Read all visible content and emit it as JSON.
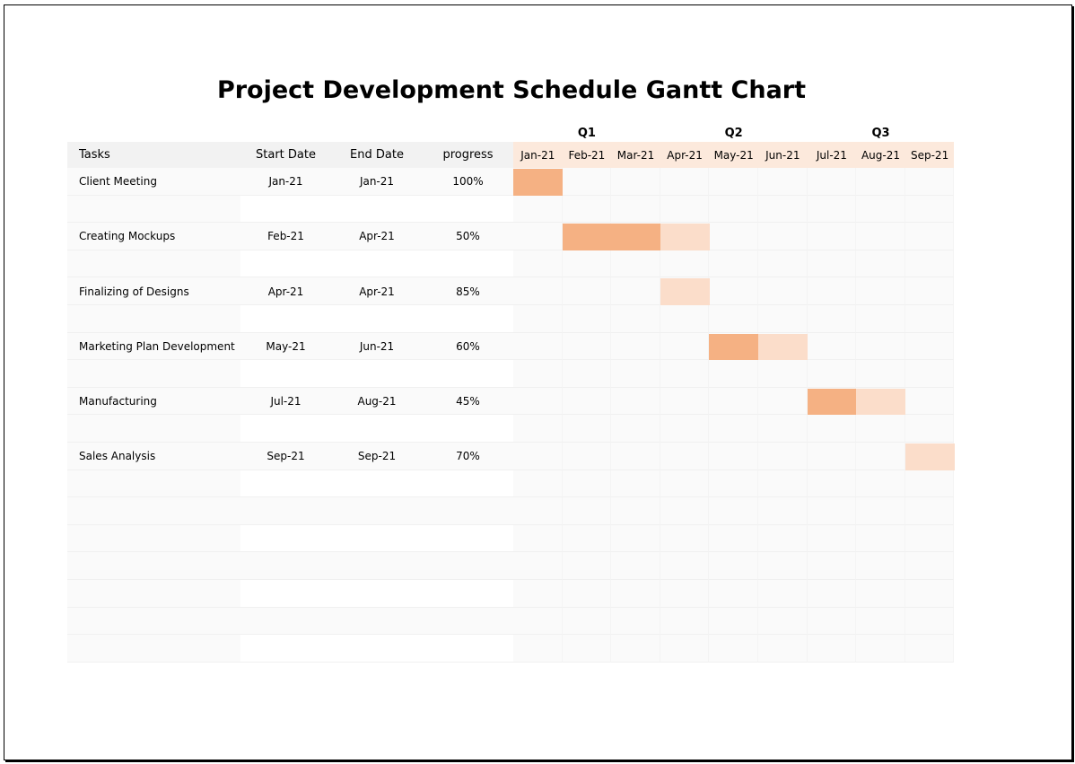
{
  "title": "Project Development Schedule Gantt Chart",
  "headers": {
    "tasks": "Tasks",
    "start": "Start Date",
    "end": "End Date",
    "progress": "progress"
  },
  "quarters": [
    "Q1",
    "Q2",
    "Q3"
  ],
  "months": [
    "Jan-21",
    "Feb-21",
    "Mar-21",
    "Apr-21",
    "May-21",
    "Jun-21",
    "Jul-21",
    "Aug-21",
    "Sep-21"
  ],
  "tasks": [
    {
      "name": "Client Meeting",
      "start": "Jan-21",
      "end": "Jan-21",
      "progress": "100%"
    },
    {
      "name": "Creating Mockups",
      "start": "Feb-21",
      "end": "Apr-21",
      "progress": "50%"
    },
    {
      "name": "Finalizing of Designs",
      "start": "Apr-21",
      "end": "Apr-21",
      "progress": "85%"
    },
    {
      "name": "Marketing Plan Development",
      "start": "May-21",
      "end": "Jun-21",
      "progress": "60%"
    },
    {
      "name": "Manufacturing",
      "start": "Jul-21",
      "end": "Aug-21",
      "progress": "45%"
    },
    {
      "name": "Sales Analysis",
      "start": "Sep-21",
      "end": "Sep-21",
      "progress": "70%"
    }
  ],
  "bars": [
    {
      "task": 0,
      "start": 0,
      "months": 1,
      "done": 1
    },
    {
      "task": 1,
      "start": 1,
      "months": 3,
      "done": 2
    },
    {
      "task": 2,
      "start": 3,
      "months": 1,
      "done": 0
    },
    {
      "task": 3,
      "start": 4,
      "months": 2,
      "done": 1
    },
    {
      "task": 4,
      "start": 6,
      "months": 2,
      "done": 1
    },
    {
      "task": 5,
      "start": 8,
      "months": 1,
      "done": 0
    }
  ],
  "colors": {
    "done": "#f5b183",
    "remaining": "#fbddca",
    "header": "#f2f2f2",
    "month_header": "#fce9dc",
    "row_shade": "#fafafa",
    "grid": "#f0f0f0"
  }
}
